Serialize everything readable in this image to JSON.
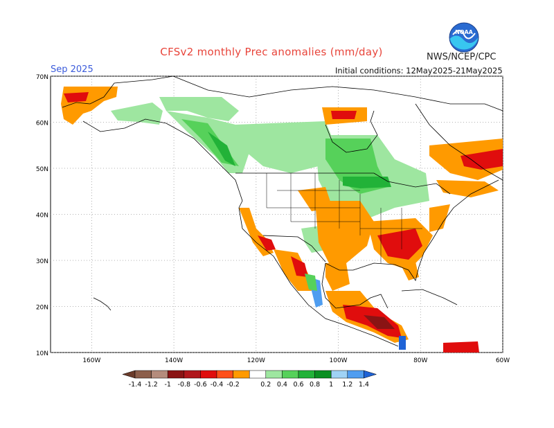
{
  "header": {
    "title": "CFSv2 monthly Prec anomalies (mm/day)",
    "agency": "NWS/NCEP/CPC",
    "logo_text": "NOAA",
    "period": "Sep 2025",
    "initial_conditions": "Initial conditions: 12May2025-21May2025"
  },
  "map": {
    "lat_labels": [
      "70N",
      "60N",
      "50N",
      "40N",
      "30N",
      "20N",
      "10N"
    ],
    "lat_values": [
      70,
      60,
      50,
      40,
      30,
      20,
      10
    ],
    "lon_labels": [
      "160W",
      "140W",
      "120W",
      "100W",
      "80W",
      "60W"
    ],
    "lon_values": [
      -160,
      -140,
      -120,
      -100,
      -80,
      -60
    ],
    "extent": {
      "lon": [
        -170,
        -60
      ],
      "lat": [
        10,
        70
      ]
    }
  },
  "colorbar": {
    "tick_labels": [
      "-1.4",
      "-1.2",
      "-1",
      "-0.8",
      "-0.6",
      "-0.4",
      "-0.2",
      "0.2",
      "0.4",
      "0.6",
      "0.8",
      "1",
      "1.2",
      "1.4"
    ],
    "colors": [
      "#6b3b2a",
      "#8c5e4a",
      "#b58c7c",
      "#8a1414",
      "#b0171c",
      "#e00d0d",
      "#ff4f1a",
      "#ff9a00",
      "#ffffff",
      "#9ee6a0",
      "#56d15a",
      "#22b238",
      "#0a8f21",
      "#9fd2f5",
      "#4f9df0",
      "#1f63d6"
    ],
    "colors_note": ""
  },
  "colors": {
    "title": "#e8443a",
    "period": "#3b5bdb",
    "dry_strong": "#b0171c",
    "dry_weak": "#ff9a00",
    "wet_weak": "#9ee6a0",
    "wet_strong": "#22b238"
  }
}
